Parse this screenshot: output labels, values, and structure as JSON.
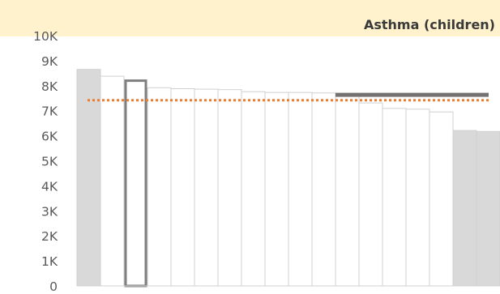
{
  "chart_data": {
    "type": "bar",
    "title": "Asthma (children)",
    "xlabel": "",
    "ylabel": "",
    "ylim": [
      0,
      10000
    ],
    "y_ticks": [
      0,
      1000,
      2000,
      3000,
      4000,
      5000,
      6000,
      7000,
      8000,
      9000,
      10000
    ],
    "y_tick_labels": [
      "0",
      "1K",
      "2K",
      "3K",
      "4K",
      "5K",
      "6K",
      "7K",
      "8K",
      "9K",
      "10K"
    ],
    "values": [
      8650,
      8380,
      8200,
      7920,
      7880,
      7860,
      7840,
      7760,
      7730,
      7730,
      7710,
      7590,
      7310,
      7090,
      7060,
      6950,
      6210,
      6170
    ],
    "bar_styles": [
      "grey",
      "plain",
      "highlight",
      "plain",
      "plain",
      "plain",
      "plain",
      "plain",
      "plain",
      "plain",
      "plain",
      "plain",
      "plain",
      "plain",
      "plain",
      "plain",
      "grey",
      "grey"
    ],
    "reference_line": {
      "value": 7420,
      "style": "dotted",
      "color": "#ED7D31"
    },
    "reference_band": {
      "value": 7650,
      "from_bar": 11,
      "to_bar": 17,
      "color": "#767171"
    },
    "grid": false,
    "legend": "none",
    "colors": {
      "grey_fill": "#D9D9D9",
      "plain_fill": "#FFFFFF",
      "bar_edge": "#D0D0D0",
      "highlight_edge": "#7F7F7F",
      "title_banner": "#FFF2CC",
      "axis": "#D0D0D0"
    }
  }
}
